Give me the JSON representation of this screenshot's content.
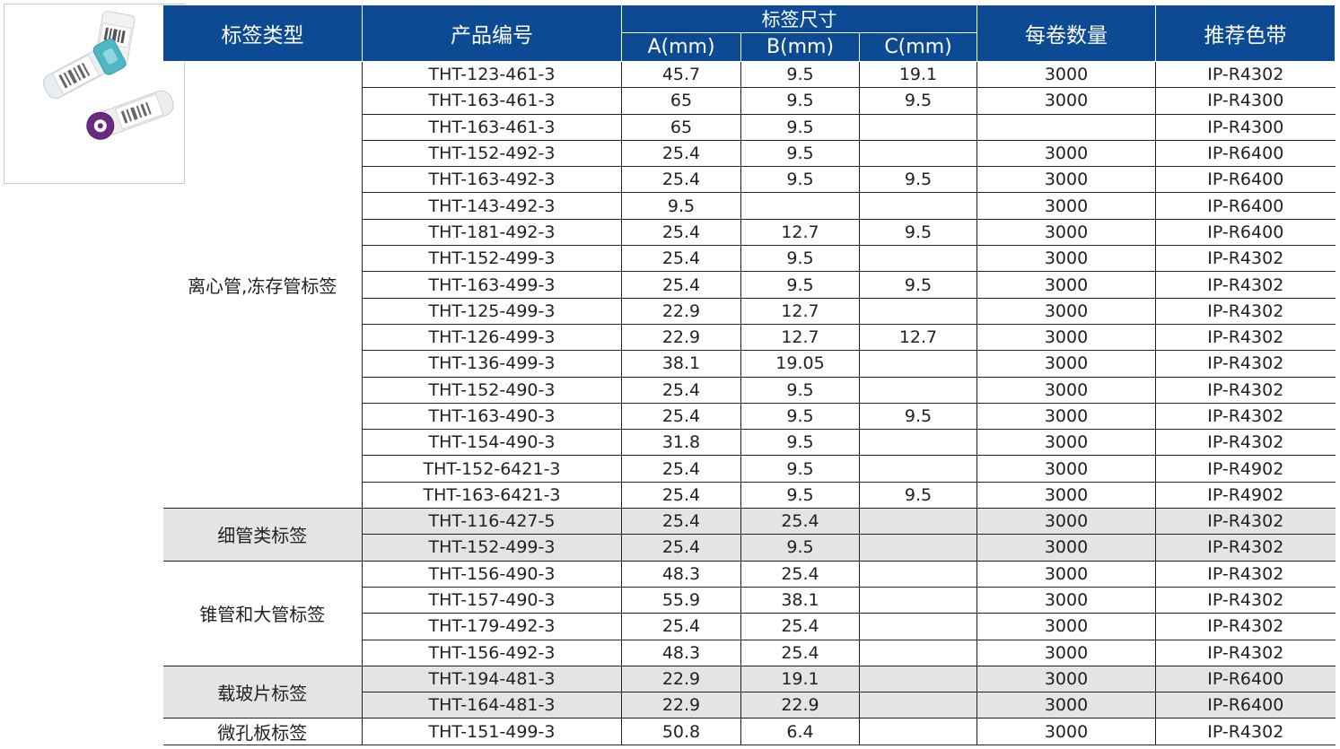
{
  "header": {
    "type": "标签类型",
    "product": "产品编号",
    "size": "标签尺寸",
    "a": "A(mm)",
    "b": "B(mm)",
    "c": "C(mm)",
    "qty": "每卷数量",
    "ribbon": "推荐色带"
  },
  "groups": [
    {
      "type": "离心管,冻存管标签",
      "shaded": false,
      "rows": [
        {
          "product": "THT-123-461-3",
          "a": "45.7",
          "b": "9.5",
          "c": "19.1",
          "qty": "3000",
          "ribbon": "IP-R4302"
        },
        {
          "product": "THT-163-461-3",
          "a": "65",
          "b": "9.5",
          "c": "9.5",
          "qty": "3000",
          "ribbon": "IP-R4300"
        },
        {
          "product": "THT-163-461-3",
          "a": "65",
          "b": "9.5",
          "c": "",
          "qty": "",
          "ribbon": "IP-R4300"
        },
        {
          "product": "THT-152-492-3",
          "a": "25.4",
          "b": "9.5",
          "c": "",
          "qty": "3000",
          "ribbon": "IP-R6400"
        },
        {
          "product": "THT-163-492-3",
          "a": "25.4",
          "b": "9.5",
          "c": "9.5",
          "qty": "3000",
          "ribbon": "IP-R6400"
        },
        {
          "product": "THT-143-492-3",
          "a": "9.5",
          "b": "",
          "c": "",
          "qty": "3000",
          "ribbon": "IP-R6400"
        },
        {
          "product": "THT-181-492-3",
          "a": "25.4",
          "b": "12.7",
          "c": "9.5",
          "qty": "3000",
          "ribbon": "IP-R6400"
        },
        {
          "product": "THT-152-499-3",
          "a": "25.4",
          "b": "9.5",
          "c": "",
          "qty": "3000",
          "ribbon": "IP-R4302"
        },
        {
          "product": "THT-163-499-3",
          "a": "25.4",
          "b": "9.5",
          "c": "9.5",
          "qty": "3000",
          "ribbon": "IP-R4302"
        },
        {
          "product": "THT-125-499-3",
          "a": "22.9",
          "b": "12.7",
          "c": "",
          "qty": "3000",
          "ribbon": "IP-R4302"
        },
        {
          "product": "THT-126-499-3",
          "a": "22.9",
          "b": "12.7",
          "c": "12.7",
          "qty": "3000",
          "ribbon": "IP-R4302"
        },
        {
          "product": "THT-136-499-3",
          "a": "38.1",
          "b": "19.05",
          "c": "",
          "qty": "3000",
          "ribbon": "IP-R4302"
        },
        {
          "product": "THT-152-490-3",
          "a": "25.4",
          "b": "9.5",
          "c": "",
          "qty": "3000",
          "ribbon": "IP-R4302"
        },
        {
          "product": "THT-163-490-3",
          "a": "25.4",
          "b": "9.5",
          "c": "9.5",
          "qty": "3000",
          "ribbon": "IP-R4302"
        },
        {
          "product": "THT-154-490-3",
          "a": "31.8",
          "b": "9.5",
          "c": "",
          "qty": "3000",
          "ribbon": "IP-R4302"
        },
        {
          "product": "THT-152-6421-3",
          "a": "25.4",
          "b": "9.5",
          "c": "",
          "qty": "3000",
          "ribbon": "IP-R4902"
        },
        {
          "product": "THT-163-6421-3",
          "a": "25.4",
          "b": "9.5",
          "c": "9.5",
          "qty": "3000",
          "ribbon": "IP-R4902"
        }
      ]
    },
    {
      "type": "细管类标签",
      "shaded": true,
      "rows": [
        {
          "product": "THT-116-427-5",
          "a": "25.4",
          "b": "25.4",
          "c": "",
          "qty": "3000",
          "ribbon": "IP-R4302"
        },
        {
          "product": "THT-152-499-3",
          "a": "25.4",
          "b": "9.5",
          "c": "",
          "qty": "3000",
          "ribbon": "IP-R4302"
        }
      ]
    },
    {
      "type": "锥管和大管标签",
      "shaded": false,
      "rows": [
        {
          "product": "THT-156-490-3",
          "a": "48.3",
          "b": "25.4",
          "c": "",
          "qty": "3000",
          "ribbon": "IP-R4302"
        },
        {
          "product": "THT-157-490-3",
          "a": "55.9",
          "b": "38.1",
          "c": "",
          "qty": "3000",
          "ribbon": "IP-R4302"
        },
        {
          "product": "THT-179-492-3",
          "a": "25.4",
          "b": "25.4",
          "c": "",
          "qty": "3000",
          "ribbon": "IP-R4302"
        },
        {
          "product": "THT-156-492-3",
          "a": "48.3",
          "b": "25.4",
          "c": "",
          "qty": "3000",
          "ribbon": "IP-R4302"
        }
      ]
    },
    {
      "type": "载玻片标签",
      "shaded": true,
      "rows": [
        {
          "product": "THT-194-481-3",
          "a": "22.9",
          "b": "19.1",
          "c": "",
          "qty": "3000",
          "ribbon": "IP-R6400"
        },
        {
          "product": "THT-164-481-3",
          "a": "22.9",
          "b": "22.9",
          "c": "",
          "qty": "3000",
          "ribbon": "IP-R6400"
        }
      ]
    },
    {
      "type": "微孔板标签",
      "shaded": false,
      "rows": [
        {
          "product": "THT-151-499-3",
          "a": "50.8",
          "b": "6.4",
          "c": "",
          "qty": "3000",
          "ribbon": "IP-R4302"
        }
      ]
    }
  ],
  "colors": {
    "header_bg": "#0d4a94",
    "header_text": "#ffffff",
    "shaded_bg": "#e4e4e4",
    "rule": "#231f20"
  },
  "image": {
    "icon": "labeled-tubes-photo"
  }
}
